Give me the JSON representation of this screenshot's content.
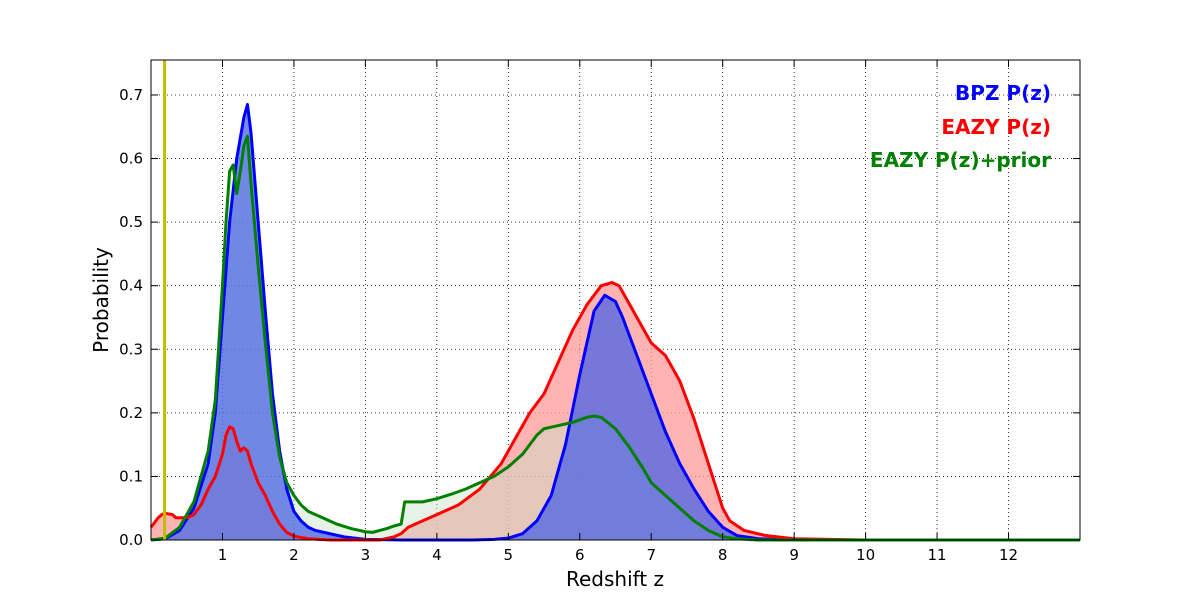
{
  "chart_data": {
    "type": "area",
    "xlabel": "Redshift z",
    "ylabel": "Probability",
    "xlim": [
      0,
      13
    ],
    "ylim": [
      0,
      0.755
    ],
    "x_ticks": [
      1,
      2,
      3,
      4,
      5,
      6,
      7,
      8,
      9,
      10,
      11,
      12
    ],
    "x_tick_labels": [
      "1",
      "2",
      "3",
      "4",
      "5",
      "6",
      "7",
      "8",
      "9",
      "10",
      "11",
      "12"
    ],
    "y_ticks": [
      0.0,
      0.1,
      0.2,
      0.3,
      0.4,
      0.5,
      0.6,
      0.7
    ],
    "y_tick_labels": [
      "0.0",
      "0.1",
      "0.2",
      "0.3",
      "0.4",
      "0.5",
      "0.6",
      "0.7"
    ],
    "grid": true,
    "legend_position": "top-right",
    "vertical_line": {
      "x": 0.19,
      "color": "#bfbf00"
    },
    "series": [
      {
        "name": "BPZ P(z)",
        "color": "#0000ff",
        "fill": "#4a63e6",
        "fill_opacity": 0.75,
        "x": [
          0,
          0.2,
          0.4,
          0.6,
          0.8,
          0.9,
          1.0,
          1.1,
          1.2,
          1.3,
          1.35,
          1.4,
          1.5,
          1.6,
          1.7,
          1.8,
          1.9,
          2.0,
          2.1,
          2.2,
          2.3,
          2.5,
          2.7,
          3.0,
          3.5,
          4.0,
          4.5,
          4.8,
          5.0,
          5.2,
          5.4,
          5.6,
          5.8,
          6.0,
          6.2,
          6.35,
          6.5,
          6.6,
          6.8,
          7.0,
          7.2,
          7.4,
          7.6,
          7.8,
          8.0,
          8.2,
          8.5,
          9.0,
          10.0,
          13.0
        ],
        "y": [
          0.0,
          0.002,
          0.015,
          0.05,
          0.12,
          0.2,
          0.35,
          0.5,
          0.6,
          0.665,
          0.685,
          0.64,
          0.5,
          0.36,
          0.23,
          0.14,
          0.08,
          0.045,
          0.03,
          0.02,
          0.015,
          0.01,
          0.005,
          0.001,
          0.0,
          0.0,
          0.0,
          0.001,
          0.003,
          0.01,
          0.03,
          0.07,
          0.15,
          0.26,
          0.36,
          0.385,
          0.375,
          0.35,
          0.29,
          0.23,
          0.17,
          0.12,
          0.08,
          0.045,
          0.02,
          0.007,
          0.002,
          0.0,
          0.0,
          0.0
        ]
      },
      {
        "name": "EAZY P(z)",
        "color": "#ff0000",
        "fill": "#ff9a9a",
        "fill_opacity": 0.75,
        "x": [
          0,
          0.1,
          0.15,
          0.2,
          0.3,
          0.35,
          0.4,
          0.5,
          0.6,
          0.7,
          0.8,
          0.9,
          1.0,
          1.05,
          1.1,
          1.15,
          1.2,
          1.25,
          1.3,
          1.35,
          1.4,
          1.5,
          1.6,
          1.7,
          1.8,
          1.9,
          2.0,
          2.2,
          2.5,
          2.8,
          3.0,
          3.2,
          3.4,
          3.5,
          3.6,
          3.8,
          4.0,
          4.3,
          4.6,
          4.9,
          5.1,
          5.3,
          5.5,
          5.7,
          5.9,
          6.1,
          6.3,
          6.45,
          6.55,
          6.7,
          6.85,
          7.0,
          7.2,
          7.4,
          7.6,
          7.8,
          8.0,
          8.1,
          8.3,
          8.6,
          9.0,
          10.0,
          13.0
        ],
        "y": [
          0.02,
          0.035,
          0.04,
          0.042,
          0.04,
          0.035,
          0.035,
          0.035,
          0.04,
          0.055,
          0.08,
          0.1,
          0.135,
          0.165,
          0.178,
          0.175,
          0.155,
          0.14,
          0.145,
          0.14,
          0.12,
          0.09,
          0.07,
          0.045,
          0.025,
          0.012,
          0.006,
          0.002,
          0.0,
          0.0,
          0.0,
          0.0,
          0.005,
          0.01,
          0.02,
          0.03,
          0.04,
          0.055,
          0.08,
          0.12,
          0.16,
          0.2,
          0.23,
          0.28,
          0.33,
          0.37,
          0.4,
          0.405,
          0.4,
          0.37,
          0.34,
          0.31,
          0.29,
          0.25,
          0.19,
          0.12,
          0.05,
          0.03,
          0.015,
          0.007,
          0.002,
          0.0,
          0.0
        ]
      },
      {
        "name": "EAZY P(z)+prior",
        "color": "#007f00",
        "fill": "#c5e3c5",
        "fill_opacity": 0.45,
        "x": [
          0,
          0.2,
          0.4,
          0.6,
          0.8,
          0.9,
          1.0,
          1.05,
          1.1,
          1.15,
          1.2,
          1.25,
          1.3,
          1.35,
          1.4,
          1.5,
          1.6,
          1.7,
          1.8,
          1.9,
          2.0,
          2.1,
          2.2,
          2.4,
          2.6,
          2.8,
          3.0,
          3.1,
          3.2,
          3.3,
          3.4,
          3.5,
          3.55,
          3.6,
          3.8,
          4.0,
          4.2,
          4.4,
          4.6,
          4.8,
          5.0,
          5.2,
          5.4,
          5.5,
          5.7,
          5.9,
          6.1,
          6.2,
          6.3,
          6.5,
          6.7,
          6.9,
          7.0,
          7.2,
          7.4,
          7.6,
          7.8,
          8.0,
          8.2,
          8.5,
          9.0,
          10.0,
          13.0
        ],
        "y": [
          0.0,
          0.003,
          0.02,
          0.06,
          0.14,
          0.22,
          0.4,
          0.5,
          0.58,
          0.59,
          0.545,
          0.58,
          0.62,
          0.635,
          0.56,
          0.43,
          0.31,
          0.2,
          0.13,
          0.09,
          0.07,
          0.055,
          0.045,
          0.035,
          0.025,
          0.018,
          0.013,
          0.012,
          0.015,
          0.018,
          0.022,
          0.025,
          0.06,
          0.06,
          0.06,
          0.065,
          0.072,
          0.08,
          0.09,
          0.1,
          0.115,
          0.135,
          0.165,
          0.175,
          0.18,
          0.185,
          0.193,
          0.195,
          0.193,
          0.175,
          0.145,
          0.11,
          0.09,
          0.07,
          0.05,
          0.03,
          0.015,
          0.005,
          0.002,
          0.0,
          0.0,
          0.0,
          0.0
        ]
      }
    ]
  }
}
